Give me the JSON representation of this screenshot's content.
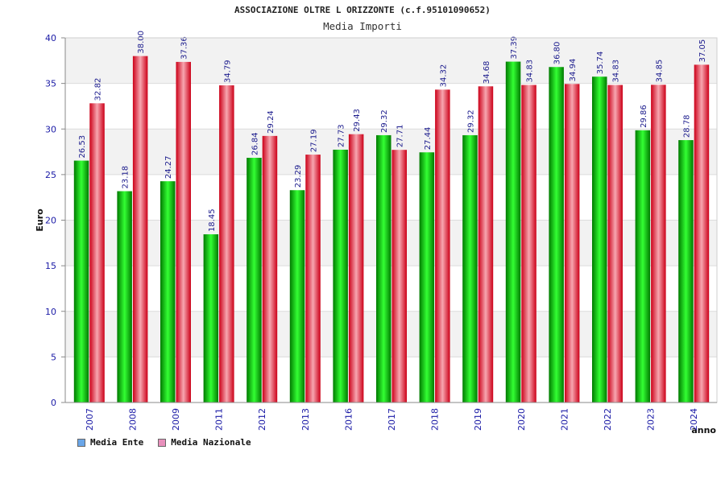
{
  "colors": {
    "ente_dark": "#007a00",
    "ente_light": "#33ff33",
    "naz_dark": "#cc0018",
    "naz_light": "#f7a6b0",
    "axis_text": "#1a1aa6",
    "band": "#f2f2f2",
    "grid": "#dcdcdc",
    "legend_ente": "#6aa6e8",
    "legend_naz": "#e890bc"
  },
  "chart_data": {
    "type": "bar",
    "title": "ASSOCIAZIONE OLTRE L ORIZZONTE (c.f.95101090652)",
    "subtitle": "Media Importi",
    "xlabel": "anno",
    "ylabel": "Euro",
    "ylim": [
      0,
      40
    ],
    "yticks": [
      "0",
      "5",
      "10",
      "15",
      "20",
      "25",
      "30",
      "35",
      "40"
    ],
    "categories": [
      "2007",
      "2008",
      "2009",
      "2011",
      "2012",
      "2013",
      "2016",
      "2017",
      "2018",
      "2019",
      "2020",
      "2021",
      "2022",
      "2023",
      "2024"
    ],
    "series": [
      {
        "name": "Media Ente",
        "values": [
          26.53,
          23.18,
          24.27,
          18.45,
          26.84,
          23.29,
          27.73,
          29.32,
          27.44,
          29.32,
          37.39,
          36.8,
          35.74,
          29.86,
          28.78
        ],
        "labels": [
          "26.53",
          "23.18",
          "24.27",
          "18.45",
          "26.84",
          "23.29",
          "27.73",
          "29.32",
          "27.44",
          "29.32",
          "37.39",
          "36.80",
          "35.74",
          "29.86",
          "28.78"
        ]
      },
      {
        "name": "Media Nazionale",
        "values": [
          32.82,
          38.0,
          37.36,
          34.79,
          29.24,
          27.19,
          29.43,
          27.71,
          34.32,
          34.68,
          34.83,
          34.94,
          34.83,
          34.85,
          37.05
        ],
        "labels": [
          "32.82",
          "38.00",
          "37.36",
          "34.79",
          "29.24",
          "27.19",
          "29.43",
          "27.71",
          "34.32",
          "34.68",
          "34.83",
          "34.94",
          "34.83",
          "34.85",
          "37.05"
        ]
      }
    ],
    "grid": true,
    "legend_position": "bottom-left"
  }
}
